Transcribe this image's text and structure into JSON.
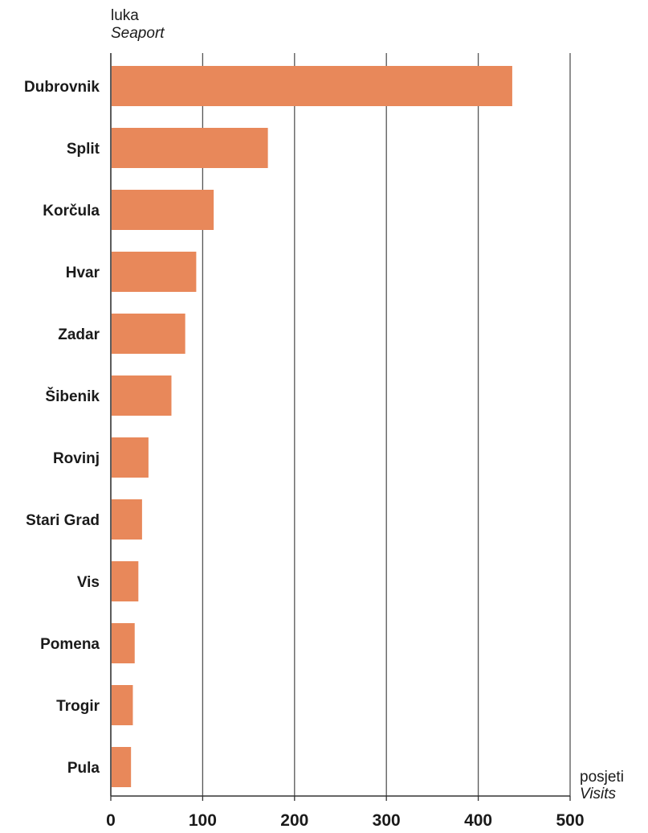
{
  "chart_data": {
    "type": "bar",
    "orientation": "horizontal",
    "categories": [
      "Dubrovnik",
      "Split",
      "Korčula",
      "Hvar",
      "Zadar",
      "Šibenik",
      "Rovinj",
      "Stari Grad",
      "Vis",
      "Pomena",
      "Trogir",
      "Pula"
    ],
    "values": [
      437,
      171,
      112,
      93,
      81,
      66,
      41,
      34,
      30,
      26,
      24,
      22
    ],
    "ylabel": "luka",
    "ylabel_en": "Seaport",
    "xlabel": "posjeti",
    "xlabel_en": "Visits",
    "xlim": [
      0,
      500
    ],
    "xticks": [
      0,
      100,
      200,
      300,
      400,
      500
    ],
    "grid": true,
    "bar_color": "#E8885A",
    "axis_color": "#333333",
    "grid_color": "#555555"
  }
}
